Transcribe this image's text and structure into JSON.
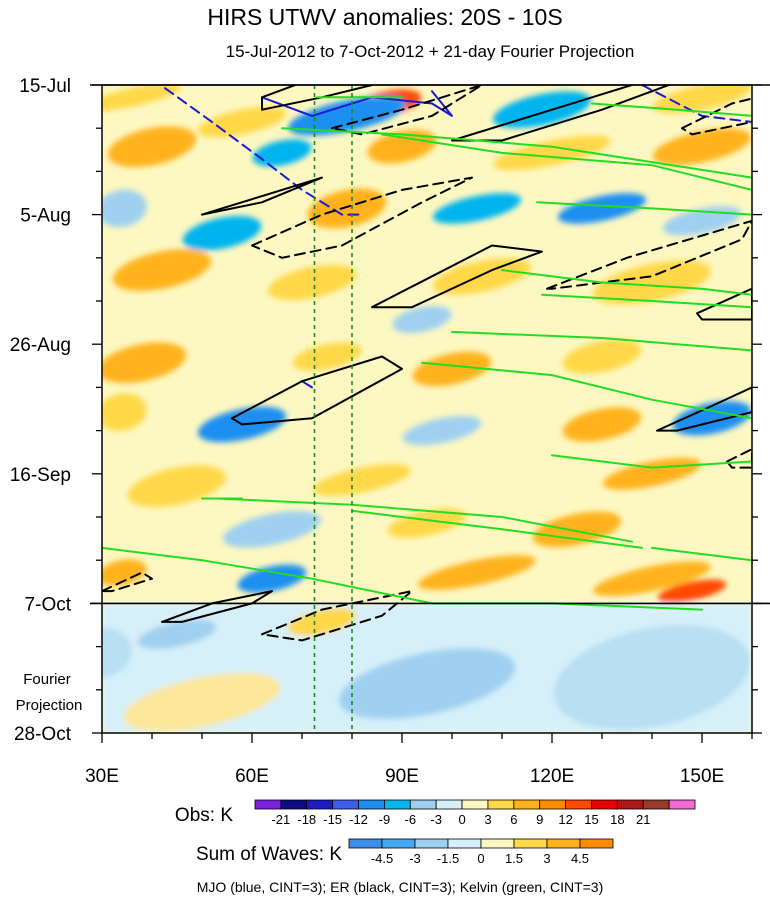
{
  "chart_data": {
    "type": "heatmap",
    "title": "HIRS UTWV anomalies: 20S - 10S",
    "subtitle": "15-Jul-2012 to 7-Oct-2012 + 21-day Fourier Projection",
    "xlim": [
      30,
      160
    ],
    "x_ticks": [
      {
        "value": 30,
        "label": "30E"
      },
      {
        "value": 60,
        "label": "60E"
      },
      {
        "value": 90,
        "label": "90E"
      },
      {
        "value": 120,
        "label": "120E"
      },
      {
        "value": 150,
        "label": "150E"
      }
    ],
    "y_ticks": [
      {
        "day": 0,
        "label": "15-Jul"
      },
      {
        "day": 21,
        "label": "5-Aug"
      },
      {
        "day": 42,
        "label": "26-Aug"
      },
      {
        "day": 63,
        "label": "16-Sep"
      },
      {
        "day": 84,
        "label": "7-Oct"
      },
      {
        "day": 105,
        "label": "28-Oct"
      }
    ],
    "ylim_days": [
      0,
      105
    ],
    "obs_end_day": 84,
    "projection_label": [
      "Fourier",
      "Projection"
    ],
    "reference_lines_lon": [
      72.5,
      80
    ],
    "obs_colorbar": {
      "title": "Obs: K",
      "labels": [
        "-21",
        "-18",
        "-15",
        "-12",
        "-9",
        "-6",
        "-3",
        "0",
        "3",
        "6",
        "9",
        "12",
        "15",
        "18",
        "21"
      ],
      "colors": [
        "#7b22e0",
        "#0c0c86",
        "#1e1ec0",
        "#3c5ee8",
        "#1d8ff0",
        "#06b4ee",
        "#9fd0f0",
        "#d6f0fa",
        "#fdf8c2",
        "#ffd84a",
        "#ffb21c",
        "#ff8c00",
        "#ff4a00",
        "#e60000",
        "#b01818",
        "#9a3a2a",
        "#f36ad2"
      ]
    },
    "waves_colorbar": {
      "title": "Sum of Waves: K",
      "labels": [
        "-4.5",
        "-3",
        "-1.5",
        "0",
        "1.5",
        "3",
        "4.5"
      ],
      "colors": [
        "#3c8ee8",
        "#45a8f0",
        "#9fd0f0",
        "#d6f0fa",
        "#fdf8c2",
        "#ffd84a",
        "#ffb21c",
        "#ff8c00"
      ]
    },
    "footer": "MJO (blue, CINT=3); ER (black, CINT=3); Kelvin (green, CINT=3)",
    "contour_series": [
      {
        "name": "MJO",
        "color": "#1a1ad0",
        "cint": 3
      },
      {
        "name": "ER",
        "color": "#000000",
        "cint": 3
      },
      {
        "name": "Kelvin",
        "color": "#22dd22",
        "cint": 3
      }
    ],
    "anomaly_blobs": [
      {
        "lon": 36,
        "day": 2,
        "rx": 10,
        "ry": 1.5,
        "val": 4.5
      },
      {
        "lon": 58,
        "day": 6,
        "rx": 9,
        "ry": 2,
        "val": 3
      },
      {
        "lon": 87,
        "day": 3,
        "rx": 7,
        "ry": 2,
        "val": 12
      },
      {
        "lon": 79,
        "day": 5,
        "rx": 12,
        "ry": 2.5,
        "val": -9
      },
      {
        "lon": 118,
        "day": 4,
        "rx": 10,
        "ry": 2.5,
        "val": -6
      },
      {
        "lon": 150,
        "day": 2,
        "rx": 10,
        "ry": 2,
        "val": 5
      },
      {
        "lon": 40,
        "day": 10,
        "rx": 9,
        "ry": 3,
        "val": 6
      },
      {
        "lon": 66,
        "day": 11,
        "rx": 6,
        "ry": 2,
        "val": -6
      },
      {
        "lon": 90,
        "day": 10,
        "rx": 7,
        "ry": 2.5,
        "val": 6
      },
      {
        "lon": 120,
        "day": 11,
        "rx": 12,
        "ry": 2,
        "val": 5
      },
      {
        "lon": 150,
        "day": 10,
        "rx": 10,
        "ry": 2.5,
        "val": 6
      },
      {
        "lon": 34,
        "day": 20,
        "rx": 5,
        "ry": 3,
        "val": -5
      },
      {
        "lon": 54,
        "day": 24,
        "rx": 8,
        "ry": 2.5,
        "val": -7
      },
      {
        "lon": 79,
        "day": 20,
        "rx": 8,
        "ry": 3,
        "val": 7
      },
      {
        "lon": 105,
        "day": 20,
        "rx": 9,
        "ry": 2,
        "val": -6
      },
      {
        "lon": 130,
        "day": 20,
        "rx": 9,
        "ry": 2,
        "val": -9
      },
      {
        "lon": 150,
        "day": 22,
        "rx": 8,
        "ry": 2,
        "val": -5
      },
      {
        "lon": 42,
        "day": 30,
        "rx": 10,
        "ry": 3,
        "val": 6
      },
      {
        "lon": 72,
        "day": 32,
        "rx": 9,
        "ry": 2.5,
        "val": 4
      },
      {
        "lon": 106,
        "day": 31,
        "rx": 10,
        "ry": 2.5,
        "val": 5
      },
      {
        "lon": 140,
        "day": 32,
        "rx": 12,
        "ry": 3,
        "val": 4
      },
      {
        "lon": 94,
        "day": 38,
        "rx": 6,
        "ry": 2,
        "val": -5
      },
      {
        "lon": 38,
        "day": 45,
        "rx": 9,
        "ry": 3,
        "val": 6
      },
      {
        "lon": 75,
        "day": 44,
        "rx": 7,
        "ry": 2,
        "val": 4
      },
      {
        "lon": 100,
        "day": 46,
        "rx": 8,
        "ry": 2.5,
        "val": 6
      },
      {
        "lon": 130,
        "day": 44,
        "rx": 8,
        "ry": 2.5,
        "val": 5
      },
      {
        "lon": 58,
        "day": 55,
        "rx": 9,
        "ry": 2.5,
        "val": -9
      },
      {
        "lon": 34,
        "day": 53,
        "rx": 5,
        "ry": 3,
        "val": 4
      },
      {
        "lon": 98,
        "day": 56,
        "rx": 8,
        "ry": 2,
        "val": -5
      },
      {
        "lon": 130,
        "day": 55,
        "rx": 8,
        "ry": 2.5,
        "val": 6
      },
      {
        "lon": 152,
        "day": 54,
        "rx": 8,
        "ry": 2.5,
        "val": -9
      },
      {
        "lon": 45,
        "day": 65,
        "rx": 10,
        "ry": 3,
        "val": 5
      },
      {
        "lon": 82,
        "day": 64,
        "rx": 10,
        "ry": 2,
        "val": 5
      },
      {
        "lon": 140,
        "day": 63,
        "rx": 10,
        "ry": 2,
        "val": 6
      },
      {
        "lon": 64,
        "day": 72,
        "rx": 10,
        "ry": 2.5,
        "val": -5
      },
      {
        "lon": 95,
        "day": 71,
        "rx": 8,
        "ry": 2,
        "val": 4
      },
      {
        "lon": 125,
        "day": 72,
        "rx": 9,
        "ry": 2.5,
        "val": 7
      },
      {
        "lon": 34,
        "day": 79,
        "rx": 5,
        "ry": 2,
        "val": 8
      },
      {
        "lon": 64,
        "day": 80,
        "rx": 7,
        "ry": 2,
        "val": -9
      },
      {
        "lon": 105,
        "day": 79,
        "rx": 12,
        "ry": 2,
        "val": 6
      },
      {
        "lon": 140,
        "day": 80,
        "rx": 12,
        "ry": 2,
        "val": 7
      },
      {
        "lon": 148,
        "day": 82,
        "rx": 7,
        "ry": 1.5,
        "val": 12
      },
      {
        "lon": 45,
        "day": 89,
        "rx": 8,
        "ry": 2,
        "val": -3
      },
      {
        "lon": 74,
        "day": 87,
        "rx": 7,
        "ry": 2,
        "val": 4.5
      },
      {
        "lon": 30,
        "day": 92,
        "rx": 6,
        "ry": 4,
        "val": -2
      },
      {
        "lon": 95,
        "day": 97,
        "rx": 18,
        "ry": 5,
        "val": -3.5
      },
      {
        "lon": 140,
        "day": 96,
        "rx": 20,
        "ry": 8,
        "val": -2.5
      },
      {
        "lon": 50,
        "day": 100,
        "rx": 16,
        "ry": 4,
        "val": 1.5
      }
    ],
    "contours": [
      {
        "wave": "MJO",
        "dash": true,
        "points": [
          [
            40,
            -1
          ],
          [
            52,
            6
          ],
          [
            62,
            12
          ],
          [
            70,
            17
          ],
          [
            78,
            21
          ],
          [
            82,
            21
          ]
        ]
      },
      {
        "wave": "MJO",
        "dash": false,
        "points": [
          [
            62,
            2
          ],
          [
            72,
            5
          ],
          [
            84,
            2
          ],
          [
            96,
            3
          ],
          [
            100,
            5
          ],
          [
            96,
            1
          ]
        ]
      },
      {
        "wave": "MJO",
        "dash": false,
        "points": [
          [
            70,
            48
          ],
          [
            72,
            49
          ]
        ]
      },
      {
        "wave": "MJO",
        "dash": true,
        "points": [
          [
            138,
            0
          ],
          [
            150,
            5
          ],
          [
            160,
            6
          ]
        ]
      },
      {
        "wave": "ER",
        "dash": false,
        "points": [
          [
            62,
            2
          ],
          [
            72,
            -1
          ],
          [
            84,
            0
          ],
          [
            74,
            2
          ],
          [
            62,
            4
          ],
          [
            62,
            2
          ]
        ]
      },
      {
        "wave": "ER",
        "dash": true,
        "points": [
          [
            76,
            7
          ],
          [
            90,
            4
          ],
          [
            106,
            0
          ],
          [
            96,
            5
          ],
          [
            82,
            8
          ],
          [
            76,
            7
          ]
        ]
      },
      {
        "wave": "ER",
        "dash": false,
        "points": [
          [
            100,
            9
          ],
          [
            120,
            4
          ],
          [
            140,
            -1
          ],
          [
            150,
            -2
          ],
          [
            130,
            4
          ],
          [
            110,
            9
          ],
          [
            100,
            9
          ]
        ]
      },
      {
        "wave": "ER",
        "dash": true,
        "points": [
          [
            146,
            7
          ],
          [
            156,
            3
          ],
          [
            161,
            2
          ],
          [
            160,
            6
          ],
          [
            148,
            8
          ],
          [
            146,
            7
          ]
        ]
      },
      {
        "wave": "ER",
        "dash": false,
        "points": [
          [
            50,
            21
          ],
          [
            62,
            18
          ],
          [
            74,
            15
          ],
          [
            62,
            19
          ],
          [
            50,
            21
          ]
        ]
      },
      {
        "wave": "ER",
        "dash": true,
        "points": [
          [
            60,
            26
          ],
          [
            74,
            21
          ],
          [
            90,
            17
          ],
          [
            104,
            15
          ],
          [
            94,
            19
          ],
          [
            78,
            26
          ],
          [
            66,
            28
          ],
          [
            60,
            26
          ]
        ]
      },
      {
        "wave": "ER",
        "dash": false,
        "points": [
          [
            84,
            36
          ],
          [
            96,
            31
          ],
          [
            108,
            26
          ],
          [
            118,
            27
          ],
          [
            108,
            30
          ],
          [
            92,
            36
          ],
          [
            84,
            36
          ]
        ]
      },
      {
        "wave": "ER",
        "dash": true,
        "points": [
          [
            119,
            33
          ],
          [
            135,
            28
          ],
          [
            160,
            22
          ],
          [
            158,
            25
          ],
          [
            140,
            31
          ],
          [
            120,
            33
          ],
          [
            119,
            33
          ]
        ]
      },
      {
        "wave": "ER",
        "dash": false,
        "points": [
          [
            149,
            37
          ],
          [
            160,
            33
          ],
          [
            160,
            38
          ],
          [
            150,
            38
          ],
          [
            149,
            37
          ]
        ]
      },
      {
        "wave": "ER",
        "dash": false,
        "points": [
          [
            56,
            54
          ],
          [
            70,
            48
          ],
          [
            86,
            44
          ],
          [
            90,
            46
          ],
          [
            72,
            54
          ],
          [
            58,
            55
          ],
          [
            56,
            54
          ]
        ]
      },
      {
        "wave": "ER",
        "dash": false,
        "points": [
          [
            141,
            56
          ],
          [
            152,
            52
          ],
          [
            160,
            49
          ],
          [
            160,
            53
          ],
          [
            145,
            56
          ],
          [
            141,
            56
          ]
        ]
      },
      {
        "wave": "ER",
        "dash": true,
        "points": [
          [
            155,
            61
          ],
          [
            160,
            59
          ],
          [
            160,
            62
          ],
          [
            156,
            62
          ],
          [
            155,
            61
          ]
        ]
      },
      {
        "wave": "ER",
        "dash": true,
        "points": [
          [
            30,
            82
          ],
          [
            38,
            79
          ],
          [
            40,
            80
          ],
          [
            32,
            82
          ],
          [
            30,
            82
          ]
        ]
      },
      {
        "wave": "ER",
        "dash": false,
        "points": [
          [
            42,
            87
          ],
          [
            52,
            84
          ],
          [
            64,
            82
          ],
          [
            60,
            84
          ],
          [
            46,
            87
          ],
          [
            42,
            87
          ]
        ]
      },
      {
        "wave": "ER",
        "dash": true,
        "points": [
          [
            62,
            89
          ],
          [
            74,
            85
          ],
          [
            92,
            82
          ],
          [
            86,
            86
          ],
          [
            70,
            90
          ],
          [
            62,
            89
          ]
        ]
      },
      {
        "wave": "Kelvin",
        "dash": false,
        "points": [
          [
            66,
            7
          ],
          [
            90,
            8
          ],
          [
            120,
            10
          ],
          [
            160,
            15
          ]
        ]
      },
      {
        "wave": "Kelvin",
        "dash": false,
        "points": [
          [
            86,
            8
          ],
          [
            110,
            11
          ],
          [
            140,
            13
          ],
          [
            160,
            17
          ]
        ]
      },
      {
        "wave": "Kelvin",
        "dash": false,
        "points": [
          [
            128,
            3
          ],
          [
            145,
            4
          ],
          [
            160,
            5
          ]
        ]
      },
      {
        "wave": "Kelvin",
        "dash": false,
        "points": [
          [
            73,
            2
          ],
          [
            90,
            2
          ]
        ]
      },
      {
        "wave": "Kelvin",
        "dash": false,
        "points": [
          [
            117,
            19
          ],
          [
            140,
            20
          ],
          [
            160,
            21
          ]
        ]
      },
      {
        "wave": "Kelvin",
        "dash": false,
        "points": [
          [
            110,
            30
          ],
          [
            130,
            32
          ],
          [
            150,
            33
          ],
          [
            160,
            34
          ]
        ]
      },
      {
        "wave": "Kelvin",
        "dash": false,
        "points": [
          [
            118,
            34
          ],
          [
            140,
            35
          ],
          [
            160,
            36
          ]
        ]
      },
      {
        "wave": "Kelvin",
        "dash": false,
        "points": [
          [
            100,
            40
          ],
          [
            130,
            41
          ],
          [
            160,
            43
          ]
        ]
      },
      {
        "wave": "Kelvin",
        "dash": false,
        "points": [
          [
            94,
            45
          ],
          [
            120,
            47
          ],
          [
            140,
            51
          ],
          [
            160,
            54
          ]
        ]
      },
      {
        "wave": "Kelvin",
        "dash": false,
        "points": [
          [
            120,
            60
          ],
          [
            140,
            62
          ],
          [
            160,
            61
          ]
        ]
      },
      {
        "wave": "Kelvin",
        "dash": false,
        "points": [
          [
            53,
            67
          ],
          [
            80,
            68
          ],
          [
            110,
            70
          ],
          [
            136,
            74
          ]
        ]
      },
      {
        "wave": "Kelvin",
        "dash": false,
        "points": [
          [
            80,
            69
          ],
          [
            110,
            72
          ],
          [
            138,
            75
          ]
        ]
      },
      {
        "wave": "Kelvin",
        "dash": false,
        "points": [
          [
            30,
            75
          ],
          [
            50,
            77
          ],
          [
            72,
            80
          ],
          [
            96,
            84
          ],
          [
            120,
            84
          ],
          [
            150,
            85
          ]
        ]
      },
      {
        "wave": "Kelvin",
        "dash": false,
        "points": [
          [
            140,
            75
          ],
          [
            160,
            77
          ]
        ]
      },
      {
        "wave": "Kelvin",
        "dash": false,
        "points": [
          [
            50,
            67
          ],
          [
            58,
            67
          ]
        ]
      }
    ]
  }
}
